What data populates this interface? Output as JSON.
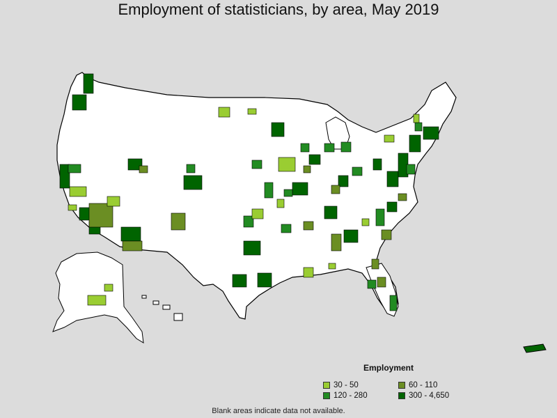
{
  "title": "Employment of statisticians, by area, May 2019",
  "legend": {
    "title": "Employment",
    "items": [
      {
        "label": "30 - 50",
        "color": "#9acd32"
      },
      {
        "label": "60 - 110",
        "color": "#6b8e23"
      },
      {
        "label": "120 - 280",
        "color": "#228b22"
      },
      {
        "label": "300 - 4,650",
        "color": "#006400"
      }
    ]
  },
  "footnote": "Blank areas indicate data not available.",
  "colors": {
    "background": "#dcdcdc",
    "land": "#ffffff",
    "border": "#000000"
  }
}
